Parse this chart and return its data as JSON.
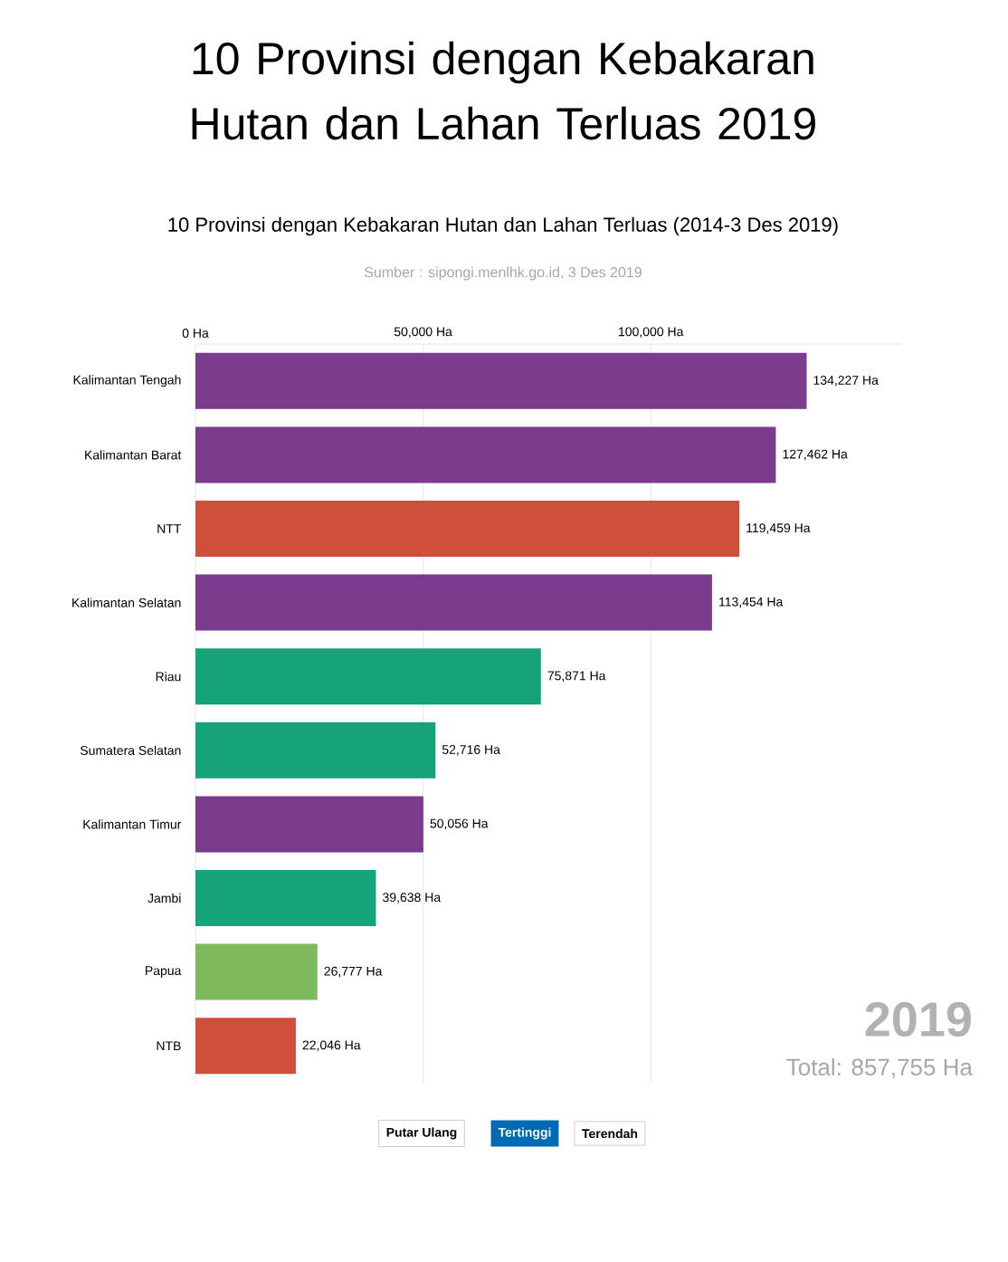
{
  "chart_data": {
    "type": "bar",
    "orientation": "horizontal",
    "title": "10 Provinsi dengan Kebakaran Hutan dan Lahan Terluas 2019",
    "subtitle": "10 Provinsi dengan Kebakaran Hutan dan Lahan Terluas (2014-3 Des 2019)",
    "categories": [
      "Kalimantan Tengah",
      "Kalimantan Barat",
      "NTT",
      "Kalimantan Selatan",
      "Riau",
      "Sumatera Selatan",
      "Kalimantan Timur",
      "Jambi",
      "Papua",
      "NTB"
    ],
    "values": [
      134227,
      127462,
      119459,
      113454,
      75871,
      52716,
      50056,
      39638,
      26777,
      22046
    ],
    "value_labels": [
      "134,227 Ha",
      "127,462 Ha",
      "119,459 Ha",
      "113,454 Ha",
      "75,871 Ha",
      "52,716 Ha",
      "50,056 Ha",
      "39,638 Ha",
      "26,777 Ha",
      "22,046 Ha"
    ],
    "colors": [
      "#7b3b8c",
      "#7b3b8c",
      "#cf4f3a",
      "#7b3b8c",
      "#15a37a",
      "#15a37a",
      "#7b3b8c",
      "#15a37a",
      "#7dba5c",
      "#cf4f3a"
    ],
    "xticks": [
      {
        "value": 0,
        "label": "0 Ha"
      },
      {
        "value": 50000,
        "label": "50,000 Ha"
      },
      {
        "value": 100000,
        "label": "100,000 Ha"
      }
    ],
    "xlim": [
      0,
      155000
    ],
    "grid": "x",
    "annotations": [
      "Sumber : sipongi.menlhk.go.id, 3 Des 2019",
      "2019",
      "Total: 857,755 Ha",
      "Putar Ulang",
      "Tertinggi",
      "Terendah"
    ]
  }
}
